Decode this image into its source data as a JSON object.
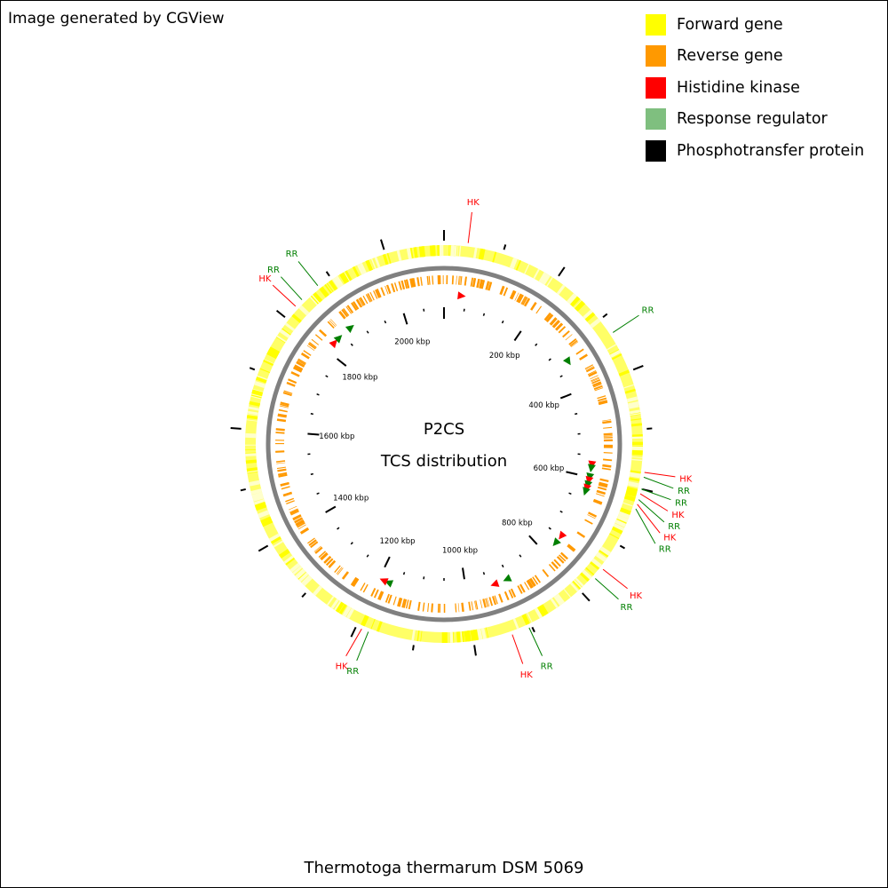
{
  "generated_by": "Image generated by CGView",
  "organism": "Thermotoga thermarum DSM 5069",
  "center": {
    "line1": "P2CS",
    "line2": "TCS distribution"
  },
  "legend": [
    {
      "label": "Forward gene",
      "color": "#ffff00"
    },
    {
      "label": "Reverse gene",
      "color": "#ff9900"
    },
    {
      "label": "Histidine kinase",
      "color": "#ff0000"
    },
    {
      "label": "Response regulator",
      "color": "#7fbf7f"
    },
    {
      "label": "Phosphotransfer protein",
      "color": "#000000"
    }
  ],
  "colors": {
    "hk": "#ff0000",
    "rr": "#007f00",
    "backbone": "#808080",
    "ticks": "#000000"
  },
  "genome_length_kbp": 2100,
  "tick_labels": [
    {
      "kbp": 200,
      "label": "200 kbp"
    },
    {
      "kbp": 400,
      "label": "400 kbp"
    },
    {
      "kbp": 600,
      "label": "600 kbp"
    },
    {
      "kbp": 800,
      "label": "800 kbp"
    },
    {
      "kbp": 1000,
      "label": "1000 kbp"
    },
    {
      "kbp": 1200,
      "label": "1200 kbp"
    },
    {
      "kbp": 1400,
      "label": "1400 kbp"
    },
    {
      "kbp": 1600,
      "label": "1600 kbp"
    },
    {
      "kbp": 1800,
      "label": "1800 kbp"
    },
    {
      "kbp": 2000,
      "label": "2000 kbp"
    }
  ],
  "tcs_features": [
    {
      "type": "HK",
      "label": "HK",
      "kbp": 40
    },
    {
      "type": "RR",
      "label": "RR",
      "kbp": 330
    },
    {
      "type": "HK",
      "label": "HK",
      "kbp": 572
    },
    {
      "type": "RR",
      "label": "RR",
      "kbp": 580
    },
    {
      "type": "RR",
      "label": "RR",
      "kbp": 600
    },
    {
      "type": "HK",
      "label": "HK",
      "kbp": 608
    },
    {
      "type": "RR",
      "label": "RR",
      "kbp": 618
    },
    {
      "type": "HK",
      "label": "HK",
      "kbp": 626
    },
    {
      "type": "RR",
      "label": "RR",
      "kbp": 634
    },
    {
      "type": "HK",
      "label": "HK",
      "kbp": 748
    },
    {
      "type": "RR",
      "label": "RR",
      "kbp": 768
    },
    {
      "type": "RR",
      "label": "RR",
      "kbp": 905
    },
    {
      "type": "HK",
      "label": "HK",
      "kbp": 935
    },
    {
      "type": "RR",
      "label": "RR",
      "kbp": 1178
    },
    {
      "type": "HK",
      "label": "HK",
      "kbp": 1190
    },
    {
      "type": "HK",
      "label": "HK",
      "kbp": 1825
    },
    {
      "type": "RR",
      "label": "RR",
      "kbp": 1840
    },
    {
      "type": "RR",
      "label": "RR",
      "kbp": 1875
    }
  ]
}
